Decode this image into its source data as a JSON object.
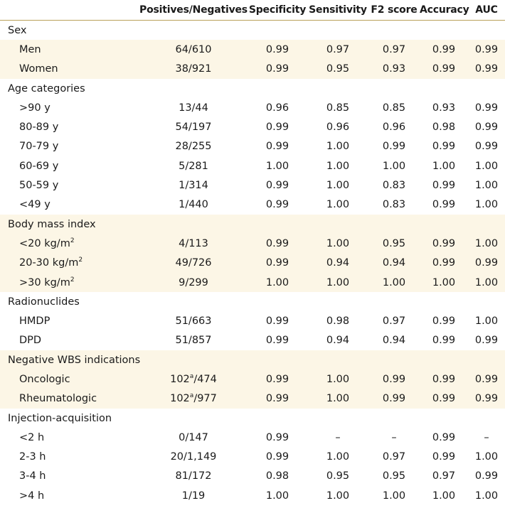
{
  "header": {
    "columns": [
      "",
      "Positives/Negatives",
      "Specificity",
      "Sensitivity",
      "F2 score",
      "Accuracy",
      "AUC"
    ]
  },
  "groups": [
    {
      "label": "Sex",
      "rows": [
        {
          "label": "Men",
          "pn": "64/610",
          "specificity": "0.99",
          "sensitivity": "0.97",
          "f2": "0.97",
          "accuracy": "0.99",
          "auc": "0.99"
        },
        {
          "label": "Women",
          "pn": "38/921",
          "specificity": "0.99",
          "sensitivity": "0.95",
          "f2": "0.93",
          "accuracy": "0.99",
          "auc": "0.99"
        }
      ]
    },
    {
      "label": "Age categories",
      "rows": [
        {
          "label": ">90 y",
          "pn": "13/44",
          "specificity": "0.96",
          "sensitivity": "0.85",
          "f2": "0.85",
          "accuracy": "0.93",
          "auc": "0.99"
        },
        {
          "label": "80-89 y",
          "pn": "54/197",
          "specificity": "0.99",
          "sensitivity": "0.96",
          "f2": "0.96",
          "accuracy": "0.98",
          "auc": "0.99"
        },
        {
          "label": "70-79 y",
          "pn": "28/255",
          "specificity": "0.99",
          "sensitivity": "1.00",
          "f2": "0.99",
          "accuracy": "0.99",
          "auc": "0.99"
        },
        {
          "label": "60-69 y",
          "pn": "5/281",
          "specificity": "1.00",
          "sensitivity": "1.00",
          "f2": "1.00",
          "accuracy": "1.00",
          "auc": "1.00"
        },
        {
          "label": "50-59 y",
          "pn": "1/314",
          "specificity": "0.99",
          "sensitivity": "1.00",
          "f2": "0.83",
          "accuracy": "0.99",
          "auc": "1.00"
        },
        {
          "label": "<49 y",
          "pn": "1/440",
          "specificity": "0.99",
          "sensitivity": "1.00",
          "f2": "0.83",
          "accuracy": "0.99",
          "auc": "1.00"
        }
      ]
    },
    {
      "label": "Body mass index",
      "rows": [
        {
          "label": "<20 kg/m",
          "label_sup": "2",
          "pn": "4/113",
          "specificity": "0.99",
          "sensitivity": "1.00",
          "f2": "0.95",
          "accuracy": "0.99",
          "auc": "1.00"
        },
        {
          "label": "20-30 kg/m",
          "label_sup": "2",
          "pn": "49/726",
          "specificity": "0.99",
          "sensitivity": "0.94",
          "f2": "0.94",
          "accuracy": "0.99",
          "auc": "0.99"
        },
        {
          "label": ">30 kg/m",
          "label_sup": "2",
          "pn": "9/299",
          "specificity": "1.00",
          "sensitivity": "1.00",
          "f2": "1.00",
          "accuracy": "1.00",
          "auc": "1.00"
        }
      ]
    },
    {
      "label": "Radionuclides",
      "rows": [
        {
          "label": "HMDP",
          "pn": "51/663",
          "specificity": "0.99",
          "sensitivity": "0.98",
          "f2": "0.97",
          "accuracy": "0.99",
          "auc": "1.00"
        },
        {
          "label": "DPD",
          "pn": "51/857",
          "specificity": "0.99",
          "sensitivity": "0.94",
          "f2": "0.94",
          "accuracy": "0.99",
          "auc": "0.99"
        }
      ]
    },
    {
      "label": "Negative WBS indications",
      "rows": [
        {
          "label": "Oncologic",
          "pn_pre": "102",
          "pn_sup": "a",
          "pn_post": "/474",
          "specificity": "0.99",
          "sensitivity": "1.00",
          "f2": "0.99",
          "accuracy": "0.99",
          "auc": "0.99"
        },
        {
          "label": "Rheumatologic",
          "pn_pre": "102",
          "pn_sup": "a",
          "pn_post": "/977",
          "specificity": "0.99",
          "sensitivity": "1.00",
          "f2": "0.99",
          "accuracy": "0.99",
          "auc": "0.99"
        }
      ]
    },
    {
      "label": "Injection-acquisition",
      "rows": [
        {
          "label": "<2 h",
          "pn": "0/147",
          "specificity": "0.99",
          "sensitivity": "–",
          "f2": "–",
          "accuracy": "0.99",
          "auc": "–"
        },
        {
          "label": "2-3 h",
          "pn": "20/1,149",
          "specificity": "0.99",
          "sensitivity": "1.00",
          "f2": "0.97",
          "accuracy": "0.99",
          "auc": "1.00"
        },
        {
          "label": "3-4 h",
          "pn": "81/172",
          "specificity": "0.98",
          "sensitivity": "0.95",
          "f2": "0.95",
          "accuracy": "0.97",
          "auc": "0.99"
        },
        {
          "label": ">4 h",
          "pn": "1/19",
          "specificity": "1.00",
          "sensitivity": "1.00",
          "f2": "1.00",
          "accuracy": "1.00",
          "auc": "1.00"
        }
      ]
    }
  ]
}
